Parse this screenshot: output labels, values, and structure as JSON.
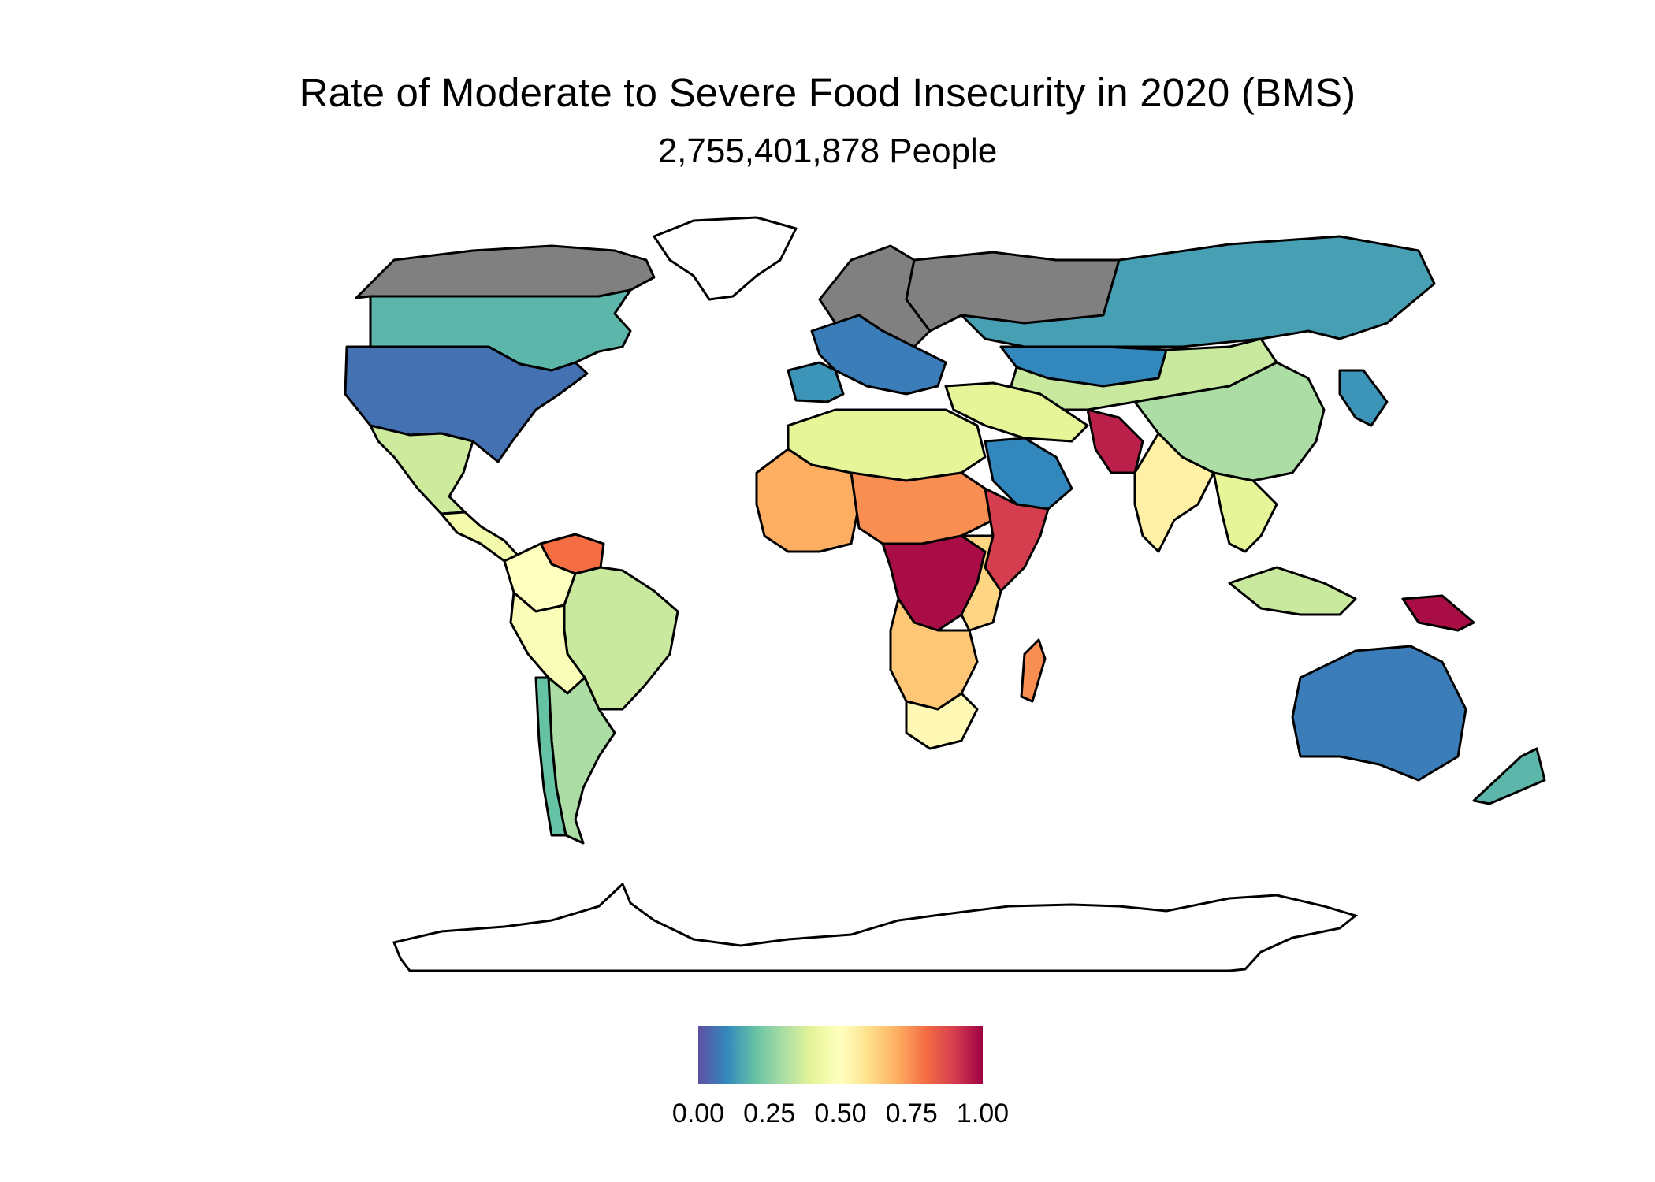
{
  "title": "Rate of Moderate to Severe Food Insecurity in 2020 (BMS)",
  "subtitle": "2,755,401,878 People",
  "colors": {
    "no_data": "#808080",
    "outline": "#000000",
    "scale": [
      "#5E4FA2",
      "#3288BD",
      "#66C2A5",
      "#ABDDA4",
      "#E6F598",
      "#FFFFBF",
      "#FEE08B",
      "#FDAE61",
      "#F46D43",
      "#D53E4F",
      "#9E0142"
    ]
  },
  "legend": {
    "type": "continuous",
    "placement": "bottom",
    "min": 0,
    "max": 1,
    "ticks": [
      "0.00",
      "0.25",
      "0.50",
      "0.75",
      "1.00"
    ]
  },
  "regions": [
    {
      "name": "Canada (northern)",
      "value": null
    },
    {
      "name": "Greenland",
      "value": null
    },
    {
      "name": "Canada (southern)",
      "value": 0.18
    },
    {
      "name": "United States",
      "value": 0.06
    },
    {
      "name": "Mexico",
      "value": 0.36
    },
    {
      "name": "Central America",
      "value": 0.45
    },
    {
      "name": "Venezuela",
      "value": 0.8
    },
    {
      "name": "Colombia",
      "value": 0.5
    },
    {
      "name": "Brazil",
      "value": 0.35
    },
    {
      "name": "Peru / Bolivia",
      "value": 0.48
    },
    {
      "name": "Argentina",
      "value": 0.3
    },
    {
      "name": "Chile",
      "value": 0.2
    },
    {
      "name": "Northern Europe",
      "value": null
    },
    {
      "name": "Western Europe",
      "value": 0.08
    },
    {
      "name": "Iberia",
      "value": 0.12
    },
    {
      "name": "Russia (north-west)",
      "value": null
    },
    {
      "name": "Russia",
      "value": 0.14
    },
    {
      "name": "Kazakhstan",
      "value": 0.1
    },
    {
      "name": "Mongolia / Central Asia",
      "value": 0.35
    },
    {
      "name": "China",
      "value": 0.3
    },
    {
      "name": "Japan / Korea",
      "value": 0.12
    },
    {
      "name": "Middle East",
      "value": 0.4
    },
    {
      "name": "Saudi Arabia",
      "value": 0.1
    },
    {
      "name": "Pakistan",
      "value": 0.95
    },
    {
      "name": "India",
      "value": 0.55
    },
    {
      "name": "Southeast Asia",
      "value": 0.4
    },
    {
      "name": "Indonesia",
      "value": 0.35
    },
    {
      "name": "Papua New Guinea",
      "value": 0.98
    },
    {
      "name": "Australia",
      "value": 0.08
    },
    {
      "name": "New Zealand",
      "value": 0.18
    },
    {
      "name": "North Africa",
      "value": 0.4
    },
    {
      "name": "West Africa",
      "value": 0.7
    },
    {
      "name": "Sahel",
      "value": 0.75
    },
    {
      "name": "DR Congo / Central Africa",
      "value": 0.98
    },
    {
      "name": "Horn of Africa",
      "value": 0.9
    },
    {
      "name": "East Africa",
      "value": 0.62
    },
    {
      "name": "Southern Africa",
      "value": 0.65
    },
    {
      "name": "South Africa",
      "value": 0.52
    },
    {
      "name": "Madagascar",
      "value": 0.75
    },
    {
      "name": "Antarctica",
      "value": null
    }
  ]
}
